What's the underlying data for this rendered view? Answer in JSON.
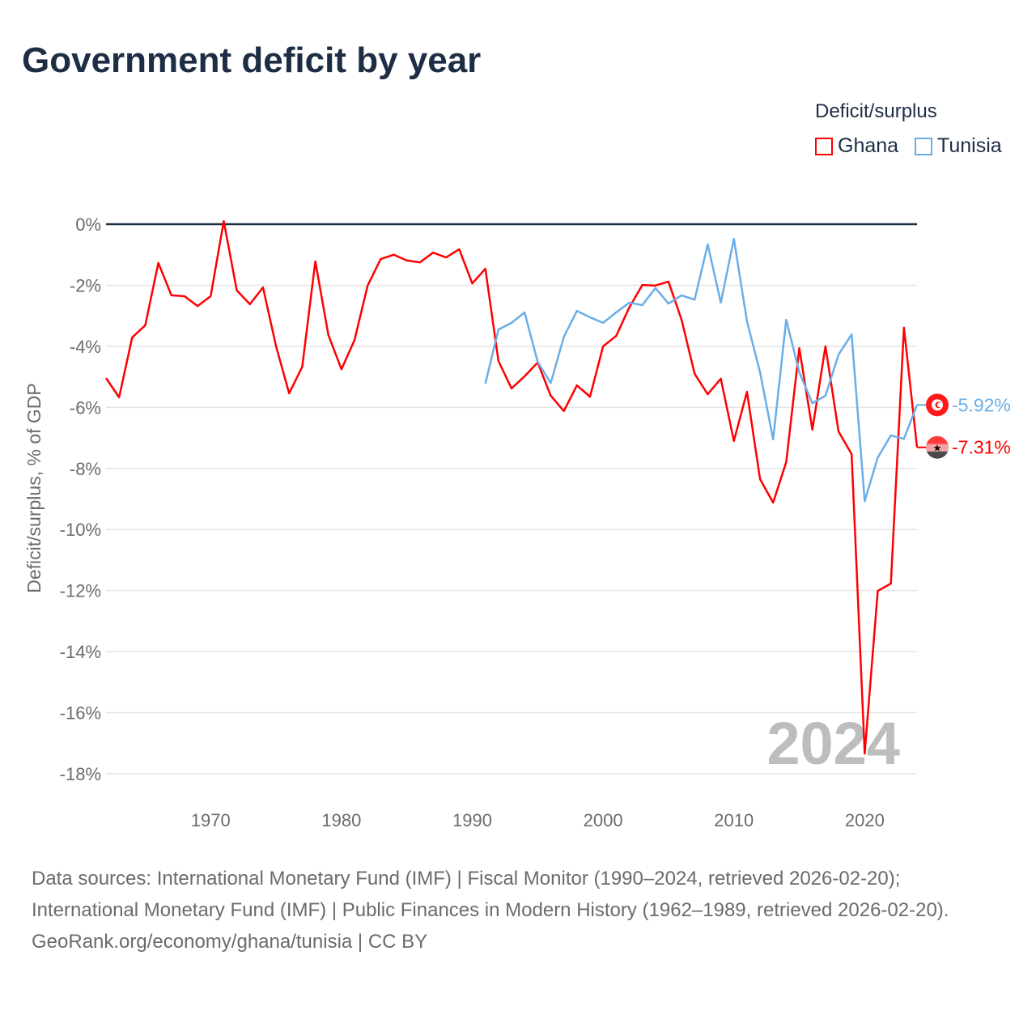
{
  "title": "Government deficit by year",
  "legend": {
    "title": "Deficit/surplus",
    "items": [
      "Ghana",
      "Tunisia"
    ]
  },
  "footer": {
    "sources": "Data sources: International Monetary Fund (IMF) | Fiscal Monitor (1990–2024, retrieved 2026-02-20); International Monetary Fund (IMF) | Public Finances in Modern History (1962–1989, retrieved 2026-02-20).",
    "credit": "GeoRank.org/economy/ghana/tunisia | CC BY"
  },
  "chart_data": {
    "type": "line",
    "title": "Government deficit by year",
    "ylabel": "Deficit/surplus, % of GDP",
    "xlim": [
      1962,
      2024
    ],
    "ylim": [
      -18,
      0
    ],
    "yticks": [
      0,
      -2,
      -4,
      -6,
      -8,
      -10,
      -12,
      -14,
      -16,
      -18
    ],
    "ytick_labels": [
      "0%",
      "-2%",
      "-4%",
      "-6%",
      "-8%",
      "-10%",
      "-12%",
      "-14%",
      "-16%",
      "-18%"
    ],
    "xticks": [
      1970,
      1980,
      1990,
      2000,
      2010,
      2020
    ],
    "xtick_labels": [
      "1970",
      "1980",
      "1990",
      "2000",
      "2010",
      "2020"
    ],
    "year_watermark": "2024",
    "series": [
      {
        "name": "Ghana",
        "color": "#ff0000",
        "start": 1962,
        "end_label": "-7.31%",
        "values": [
          -5.04,
          -5.67,
          -3.71,
          -3.31,
          -1.27,
          -2.33,
          -2.36,
          -2.68,
          -2.36,
          0.1,
          -2.17,
          -2.62,
          -2.07,
          -4.0,
          -5.54,
          -4.67,
          -1.22,
          -3.63,
          -4.75,
          -3.79,
          -2.01,
          -1.14,
          -1.0,
          -1.19,
          -1.25,
          -0.93,
          -1.09,
          -0.82,
          -1.94,
          -1.46,
          -4.48,
          -5.38,
          -4.98,
          -4.53,
          -5.62,
          -6.12,
          -5.28,
          -5.65,
          -4.0,
          -3.66,
          -2.73,
          -1.99,
          -2.01,
          -1.88,
          -3.13,
          -4.9,
          -5.57,
          -5.06,
          -7.1,
          -5.49,
          -8.35,
          -9.12,
          -7.79,
          -4.06,
          -6.73,
          -4.0,
          -6.79,
          -7.53,
          -17.34,
          -12.01,
          -11.77,
          -3.39,
          -7.31
        ]
      },
      {
        "name": "Tunisia",
        "color": "#6aaee8",
        "start": 1991,
        "end_label": "-5.92%",
        "values": [
          -5.22,
          -3.45,
          -3.23,
          -2.89,
          -4.51,
          -5.2,
          -3.69,
          -2.84,
          -3.05,
          -3.23,
          -2.89,
          -2.57,
          -2.65,
          -2.09,
          -2.6,
          -2.33,
          -2.47,
          -0.66,
          -2.57,
          -0.48,
          -3.18,
          -4.85,
          -7.05,
          -3.13,
          -4.85,
          -5.86,
          -5.62,
          -4.27,
          -3.61,
          -9.07,
          -7.64,
          -6.92,
          -7.03,
          -5.92
        ]
      }
    ]
  }
}
